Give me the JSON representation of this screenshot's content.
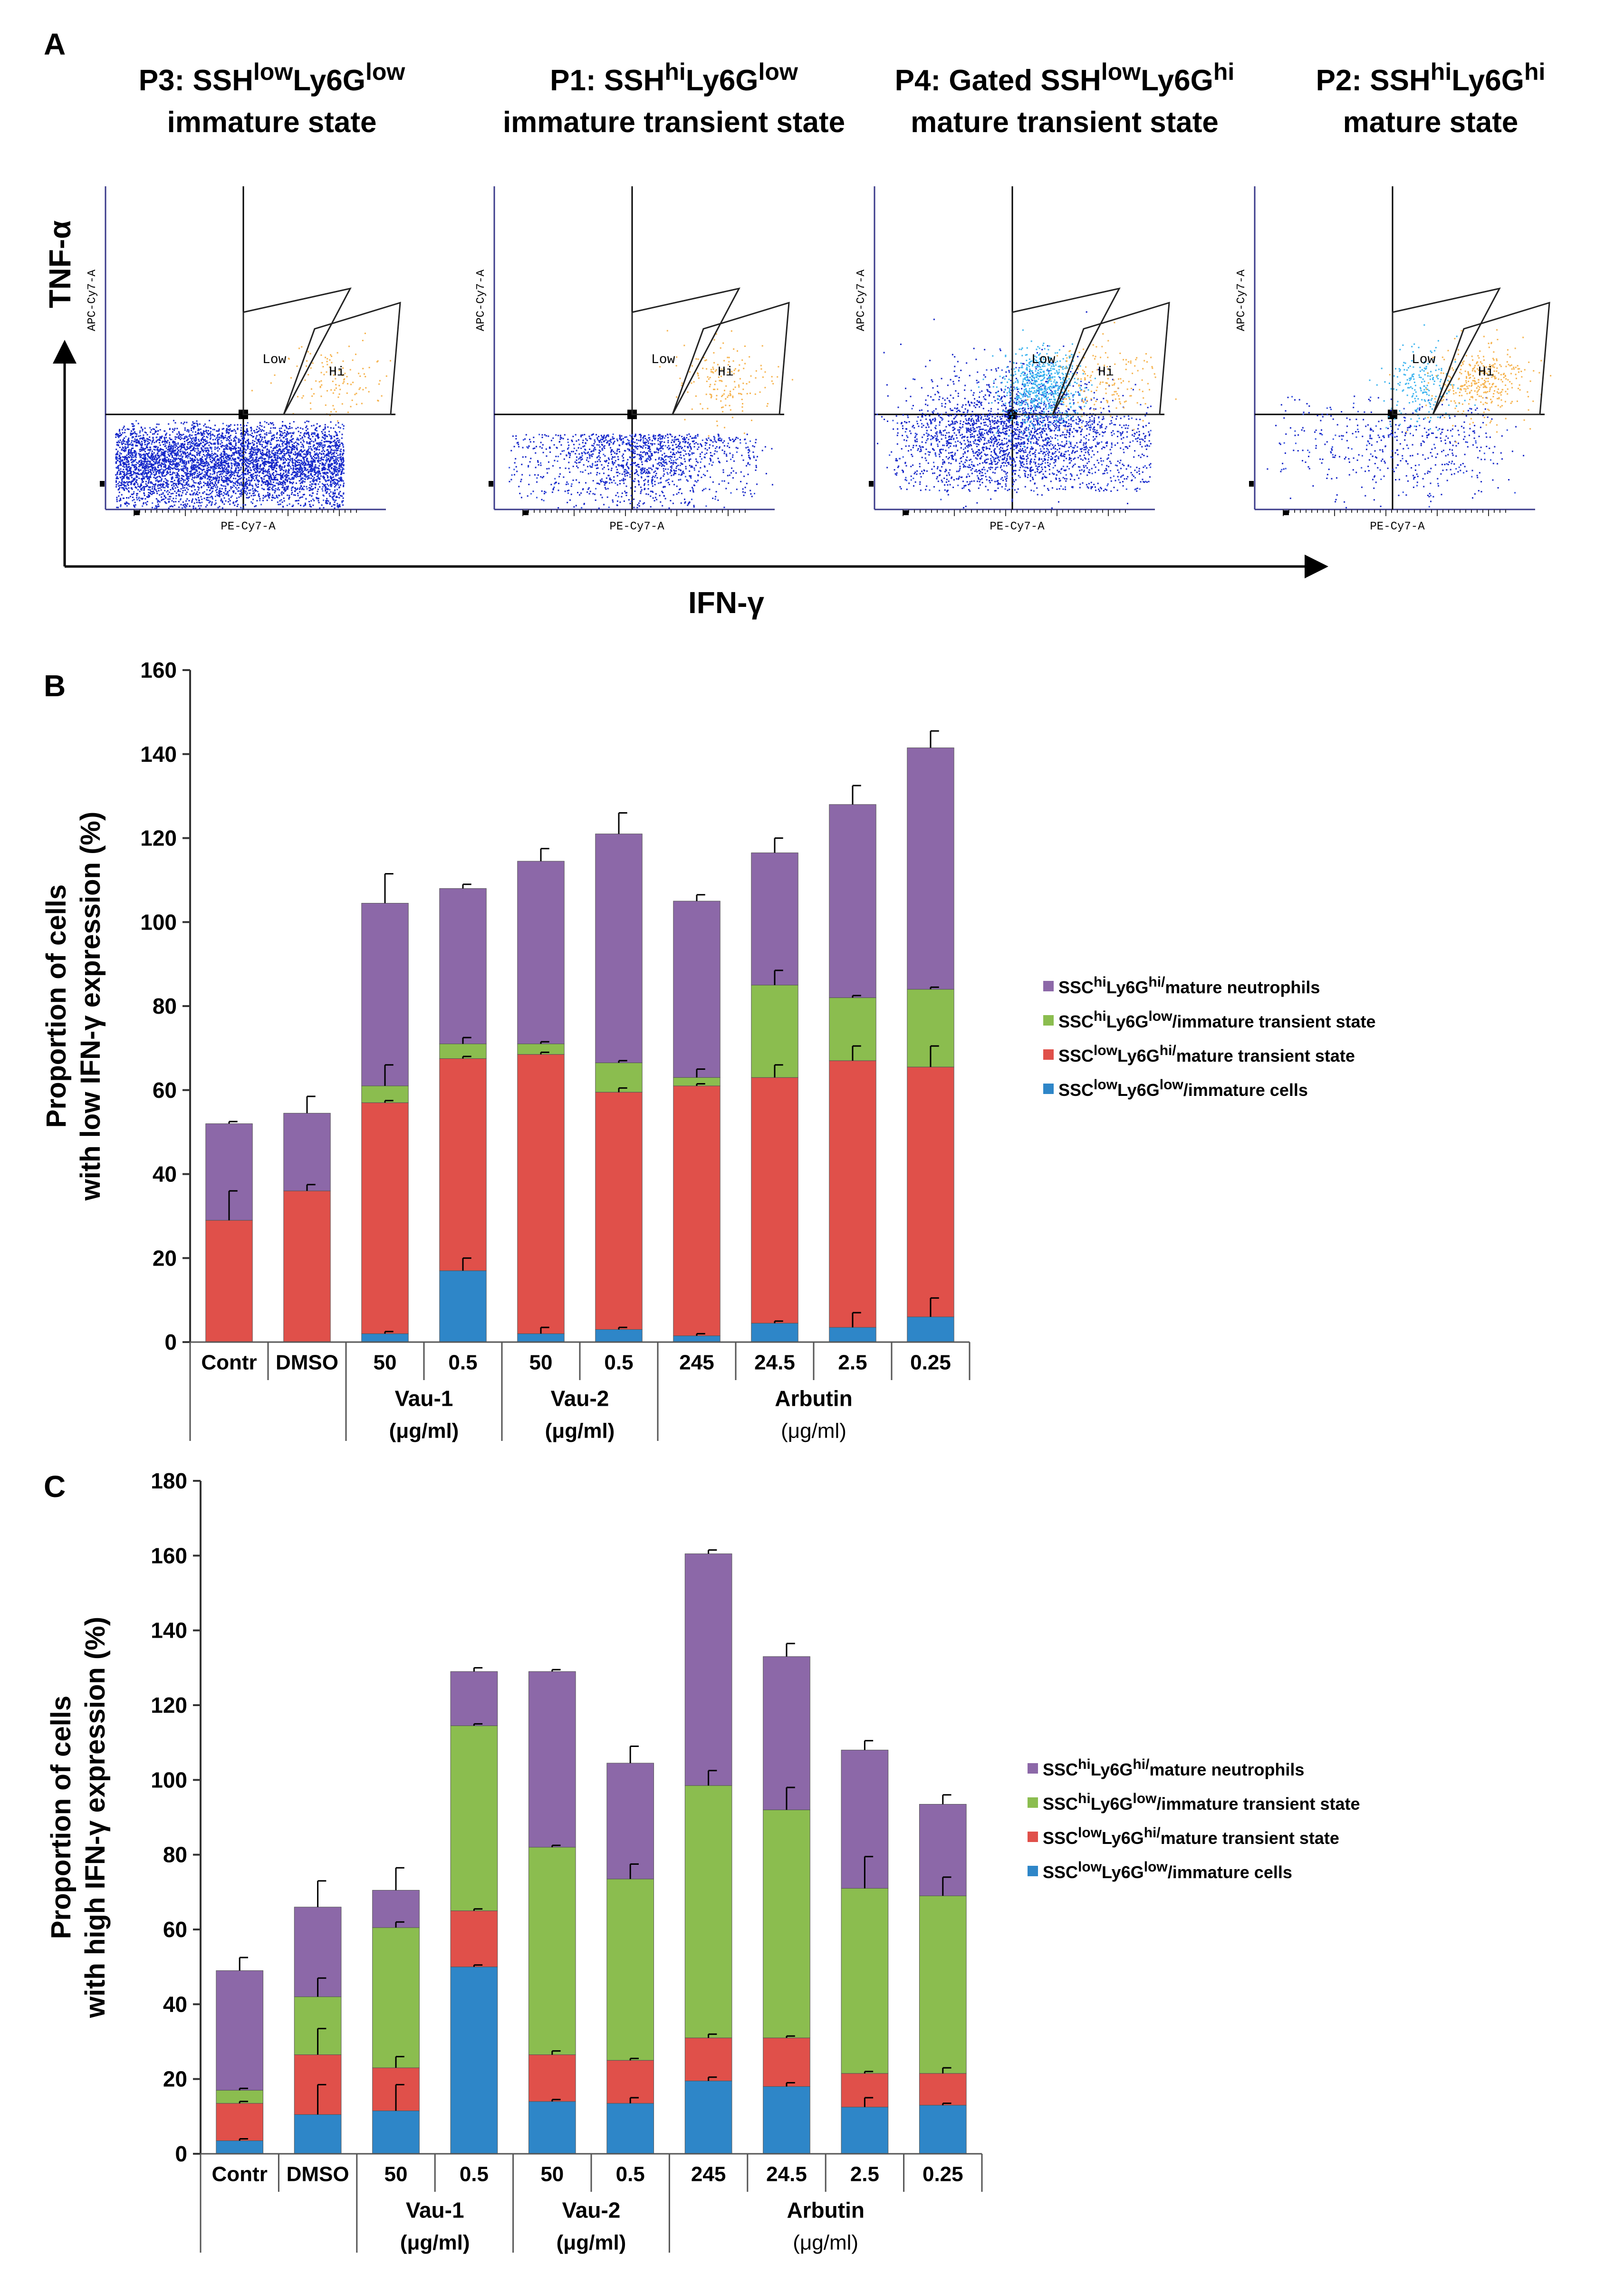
{
  "panel_a": {
    "label": "A",
    "y_axis": "TNF-α",
    "x_axis": "IFN-γ",
    "gate_low": "Low",
    "gate_hi": "Hi",
    "plot_xlabel": "PE-Cy7-A",
    "plot_ylabel": "APC-Cy7-A",
    "plots": [
      {
        "t1_a": "P3: SSH",
        "t1_b": "low",
        "t1_c": "Ly6G",
        "t1_d": "low",
        "t2": "immature state"
      },
      {
        "t1_a": "P1: SSH",
        "t1_b": "hi",
        "t1_c": "Ly6G",
        "t1_d": "low",
        "t2": "immature transient state"
      },
      {
        "t1_a": "P4: Gated SSH",
        "t1_b": "low",
        "t1_c": "Ly6G",
        "t1_d": "hi",
        "t2": "mature transient state"
      },
      {
        "t1_a": "P2: SSH",
        "t1_b": "hi",
        "t1_c": "Ly6G",
        "t1_d": "hi",
        "t2": "mature state"
      }
    ]
  },
  "colors": {
    "immature": "#2e86c8",
    "mature_transient": "#e0504a",
    "immature_transient": "#8bbd4f",
    "mature": "#8c68a8"
  },
  "legend": [
    {
      "a": "SSC",
      "b": "hi",
      "c": "Ly6G",
      "d": "hi/",
      "e": "mature neutrophils",
      "key": "mature"
    },
    {
      "a": "SSC",
      "b": "hi",
      "c": "Ly6G",
      "d": "low",
      "e": "/immature transient state",
      "key": "immature_transient"
    },
    {
      "a": "SSC",
      "b": "low",
      "c": "Ly6G",
      "d": "hi/",
      "e": "mature transient state",
      "key": "mature_transient"
    },
    {
      "a": "SSC",
      "b": "low",
      "c": "Ly6G",
      "d": "low",
      "e": "/immature cells",
      "key": "immature"
    }
  ],
  "chart_data": [
    {
      "panel": "B",
      "type": "bar",
      "stacked": true,
      "ylabel_line1": "Proportion of cells",
      "ylabel_line2": "with low IFN-γ expression (%)",
      "ylim": [
        0,
        160
      ],
      "yticks": [
        0,
        20,
        40,
        60,
        80,
        100,
        120,
        140,
        160
      ],
      "categories": [
        "Contr",
        "DMSO",
        "50",
        "0.5",
        "50",
        "0.5",
        "245",
        "24.5",
        "2.5",
        "0.25"
      ],
      "groups": [
        {
          "label1": "Vau-1",
          "label2": "(μg/ml)",
          "from": 2,
          "to": 3
        },
        {
          "label1": "Vau-2",
          "label2": "(μg/ml)",
          "from": 4,
          "to": 5
        },
        {
          "label1": "Arbutin",
          "label2": "(μg/ml)",
          "from": 6,
          "to": 9
        }
      ],
      "series": [
        {
          "name": "SSClowLy6Glow/immature cells",
          "key": "immature",
          "values": [
            0,
            0,
            2,
            17,
            2,
            3,
            1.5,
            4.5,
            3.5,
            6
          ],
          "errors": [
            0,
            0,
            0.5,
            3,
            1.5,
            0.5,
            0.5,
            0.5,
            3.5,
            4.5
          ]
        },
        {
          "name": "SSClowLy6Ghi/mature transient state",
          "key": "mature_transient",
          "values": [
            29,
            36,
            55,
            50.5,
            66.5,
            56.5,
            59.5,
            58.5,
            63.5,
            59.5
          ],
          "errors": [
            7,
            1.5,
            0.5,
            0.5,
            0.5,
            1,
            0.5,
            3,
            3.5,
            5
          ]
        },
        {
          "name": "SSChiLy6Glow/immature transient state",
          "key": "immature_transient",
          "values": [
            0,
            0,
            4,
            3.5,
            2.5,
            7,
            2,
            22,
            15,
            18.5
          ],
          "errors": [
            0,
            0,
            5,
            1.5,
            0.5,
            0.5,
            2,
            3.5,
            0.5,
            0.5
          ]
        },
        {
          "name": "SSChiLy6Ghi/mature neutrophils",
          "key": "mature",
          "values": [
            23,
            18.5,
            43.5,
            37,
            43.5,
            54.5,
            42,
            31.5,
            46,
            57.5
          ],
          "errors": [
            0.5,
            4,
            7,
            1,
            3,
            5,
            1.5,
            3.5,
            4.5,
            4
          ]
        }
      ]
    },
    {
      "panel": "C",
      "type": "bar",
      "stacked": true,
      "ylabel_line1": "Proportion of cells",
      "ylabel_line2": "with high IFN-γ expression (%)",
      "ylim": [
        0,
        180
      ],
      "yticks": [
        0,
        20,
        40,
        60,
        80,
        100,
        120,
        140,
        160,
        180
      ],
      "categories": [
        "Contr",
        "DMSO",
        "50",
        "0.5",
        "50",
        "0.5",
        "245",
        "24.5",
        "2.5",
        "0.25"
      ],
      "groups": [
        {
          "label1": "Vau-1",
          "label2": "(μg/ml)",
          "from": 2,
          "to": 3
        },
        {
          "label1": "Vau-2",
          "label2": "(μg/ml)",
          "from": 4,
          "to": 5
        },
        {
          "label1": "Arbutin",
          "label2": "(μg/ml)",
          "from": 6,
          "to": 9
        }
      ],
      "series": [
        {
          "name": "SSClowLy6Glow/immature cells",
          "key": "immature",
          "values": [
            3.5,
            10.5,
            11.5,
            50,
            14,
            13.5,
            19.5,
            18,
            12.5,
            13
          ],
          "errors": [
            0.5,
            8,
            7,
            0.5,
            0.5,
            1.5,
            1,
            1,
            2.5,
            0.5
          ]
        },
        {
          "name": "SSClowLy6Ghi/mature transient state",
          "key": "mature_transient",
          "values": [
            10,
            16,
            11.5,
            15,
            12.5,
            11.5,
            11.5,
            13,
            9,
            8.5
          ],
          "errors": [
            0.5,
            7,
            3,
            0.5,
            1,
            0.5,
            1,
            0.5,
            0.5,
            1.5
          ]
        },
        {
          "name": "SSChiLy6Glow/immature transient state",
          "key": "immature_transient",
          "values": [
            3.5,
            15.5,
            37.5,
            49.5,
            55.5,
            48.5,
            67.5,
            61,
            49.5,
            47.5
          ],
          "errors": [
            0.5,
            5,
            1.5,
            0.5,
            0.5,
            4,
            4,
            6,
            8.5,
            5
          ]
        },
        {
          "name": "SSChiLy6Ghi/mature neutrophils",
          "key": "mature",
          "values": [
            32,
            24,
            10,
            14.5,
            47,
            31,
            62,
            41,
            37,
            24.5
          ],
          "errors": [
            3.5,
            7,
            6,
            1,
            0.5,
            4.5,
            1,
            3.5,
            2.5,
            2.5
          ]
        }
      ]
    }
  ]
}
